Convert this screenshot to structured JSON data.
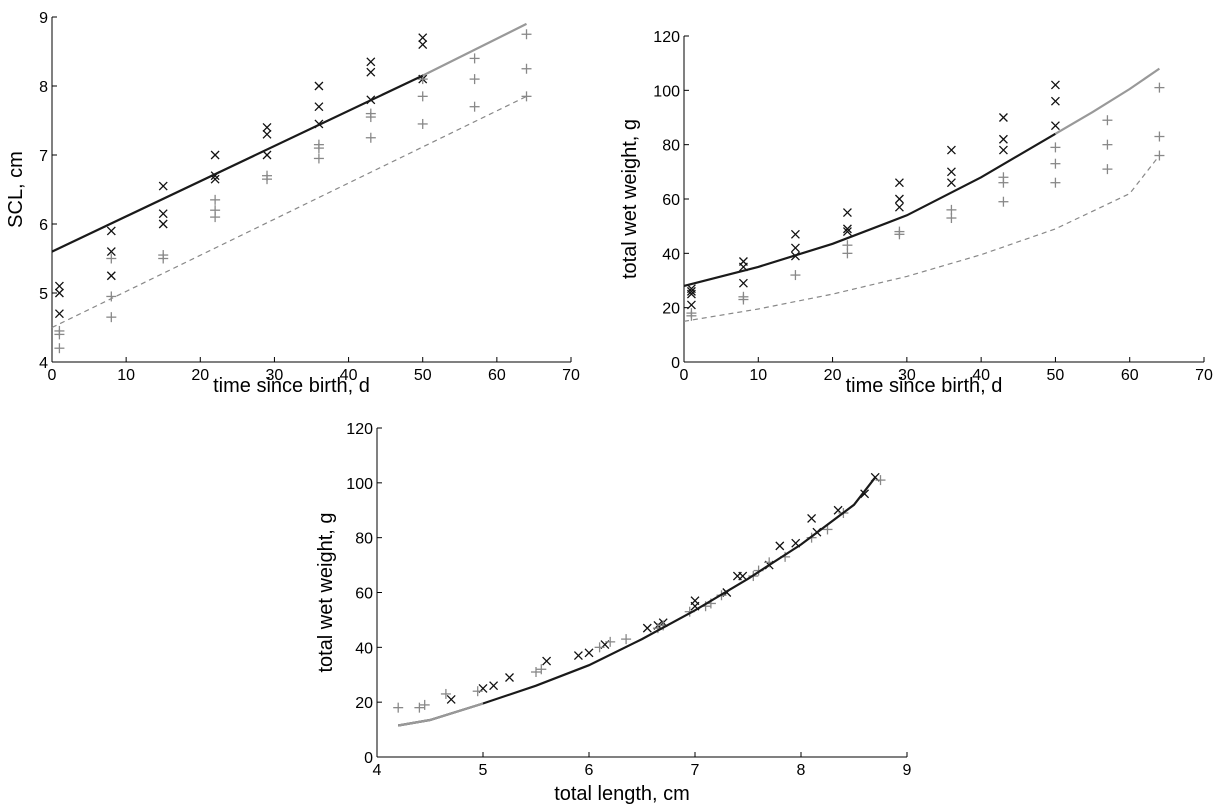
{
  "chart_data": [
    {
      "type": "scatter",
      "title": "",
      "xlabel": "time since birth, d",
      "ylabel": "SCL, cm",
      "xlim": [
        0,
        70
      ],
      "ylim": [
        4,
        9
      ],
      "xticks": [
        0,
        10,
        20,
        30,
        40,
        50,
        60,
        70
      ],
      "yticks": [
        4,
        5,
        6,
        7,
        8,
        9
      ],
      "grid": false,
      "series": [
        {
          "marker": "x",
          "color": "#111111",
          "x": [
            1,
            1,
            1,
            8,
            8,
            8,
            15,
            15,
            15,
            22,
            22,
            22,
            29,
            29,
            29,
            36,
            36,
            36,
            43,
            43,
            43,
            50,
            50,
            50
          ],
          "y": [
            5.1,
            5.0,
            4.7,
            5.9,
            5.6,
            5.25,
            6.55,
            6.15,
            6.0,
            7.0,
            6.7,
            6.65,
            7.4,
            7.3,
            7.0,
            8.0,
            7.7,
            7.45,
            8.35,
            8.2,
            7.8,
            8.7,
            8.6,
            8.1
          ]
        },
        {
          "marker": "+",
          "color": "#888888",
          "x": [
            1,
            1,
            1,
            8,
            8,
            8,
            15,
            15,
            22,
            22,
            22,
            29,
            29,
            36,
            36,
            36,
            43,
            43,
            43,
            50,
            50,
            50,
            57,
            57,
            57,
            64,
            64,
            64
          ],
          "y": [
            4.45,
            4.4,
            4.2,
            5.5,
            4.95,
            4.65,
            5.55,
            5.5,
            6.35,
            6.2,
            6.1,
            6.7,
            6.65,
            7.15,
            7.1,
            6.95,
            7.6,
            7.55,
            7.25,
            8.1,
            7.85,
            7.45,
            8.4,
            8.1,
            7.7,
            8.75,
            8.25,
            7.85
          ]
        },
        {
          "line": "solid",
          "color": "#1a1a1a",
          "x": [
            0,
            50
          ],
          "y": [
            5.6,
            8.15
          ]
        },
        {
          "line": "solid",
          "color": "#999999",
          "x": [
            50,
            64
          ],
          "y": [
            8.15,
            8.9
          ]
        },
        {
          "line": "dashed",
          "color": "#888888",
          "x": [
            0,
            64
          ],
          "y": [
            4.5,
            7.85
          ]
        }
      ]
    },
    {
      "type": "scatter",
      "title": "",
      "xlabel": "time since birth, d",
      "ylabel": "total wet weight, g",
      "xlim": [
        0,
        70
      ],
      "ylim": [
        0,
        120
      ],
      "xticks": [
        0,
        10,
        20,
        30,
        40,
        50,
        60,
        70
      ],
      "yticks": [
        0,
        20,
        40,
        60,
        80,
        100,
        120
      ],
      "grid": false,
      "series": [
        {
          "marker": "x",
          "color": "#111111",
          "x": [
            1,
            1,
            1,
            1,
            8,
            8,
            8,
            15,
            15,
            15,
            22,
            22,
            22,
            29,
            29,
            29,
            36,
            36,
            36,
            43,
            43,
            43,
            50,
            50,
            50
          ],
          "y": [
            27,
            26,
            25,
            21,
            37,
            35,
            29,
            47,
            42,
            39,
            55,
            49,
            48,
            66,
            60,
            57,
            78,
            70,
            66,
            90,
            82,
            78,
            102,
            96,
            87
          ]
        },
        {
          "marker": "+",
          "color": "#888888",
          "x": [
            1,
            1,
            8,
            8,
            15,
            22,
            22,
            29,
            29,
            36,
            36,
            43,
            43,
            43,
            50,
            50,
            50,
            57,
            57,
            57,
            64,
            64,
            64
          ],
          "y": [
            18,
            17,
            24,
            23,
            32,
            43,
            40,
            48,
            47,
            56,
            53,
            68,
            66,
            59,
            79,
            73,
            66,
            89,
            80,
            71,
            101,
            83,
            76
          ]
        },
        {
          "line": "solid",
          "color": "#1a1a1a",
          "x": [
            0,
            10,
            20,
            30,
            40,
            50
          ],
          "y": [
            28,
            35,
            43.5,
            54,
            68,
            84
          ]
        },
        {
          "line": "solid",
          "color": "#999999",
          "x": [
            50,
            55,
            60,
            64
          ],
          "y": [
            84,
            92,
            100.5,
            108
          ]
        },
        {
          "line": "dashed",
          "color": "#888888",
          "x": [
            0,
            10,
            20,
            30,
            40,
            50,
            60,
            64
          ],
          "y": [
            15,
            19.5,
            25,
            31.5,
            39.5,
            49,
            62,
            76
          ]
        }
      ]
    },
    {
      "type": "scatter",
      "title": "",
      "xlabel": "total length, cm",
      "ylabel": "total wet weight, g",
      "xlim": [
        4,
        9
      ],
      "ylim": [
        0,
        120
      ],
      "xticks": [
        4,
        5,
        6,
        7,
        8,
        9
      ],
      "yticks": [
        0,
        20,
        40,
        60,
        80,
        100,
        120
      ],
      "grid": false,
      "series": [
        {
          "marker": "x",
          "color": "#111111",
          "x": [
            4.7,
            5.0,
            5.1,
            5.25,
            5.6,
            5.9,
            6.0,
            6.15,
            6.55,
            6.65,
            6.7,
            7.0,
            7.0,
            7.3,
            7.4,
            7.45,
            7.7,
            7.8,
            7.95,
            8.1,
            8.15,
            8.35,
            8.6,
            8.7
          ],
          "y": [
            21,
            25,
            26,
            29,
            35,
            37,
            38,
            41,
            47,
            48,
            49,
            57,
            55,
            60,
            66,
            66,
            70,
            77,
            78,
            87,
            82,
            90,
            96,
            102
          ]
        },
        {
          "marker": "+",
          "color": "#888888",
          "x": [
            4.2,
            4.4,
            4.45,
            4.65,
            4.95,
            5.5,
            5.55,
            6.1,
            6.2,
            6.35,
            6.65,
            6.7,
            6.95,
            7.1,
            7.15,
            7.25,
            7.55,
            7.6,
            7.7,
            7.85,
            8.1,
            8.25,
            8.4,
            8.75
          ],
          "y": [
            18,
            18,
            19,
            23,
            24,
            31,
            32,
            40,
            42,
            43,
            47,
            48,
            53,
            55,
            56,
            59,
            66,
            68,
            71,
            73,
            80,
            83,
            89,
            101
          ]
        },
        {
          "line": "solid",
          "color": "#1a1a1a",
          "x": [
            4.2,
            4.5,
            5.0,
            5.5,
            6.0,
            6.5,
            7.0,
            7.5,
            8.0,
            8.5,
            8.7
          ],
          "y": [
            11.5,
            13.5,
            19.5,
            26,
            33.5,
            43,
            53.5,
            65,
            77.5,
            92,
            102
          ]
        },
        {
          "line": "solid",
          "color": "#999999",
          "x": [
            4.2,
            4.5,
            5.0
          ],
          "y": [
            11.5,
            13.5,
            19.5
          ]
        }
      ]
    }
  ]
}
